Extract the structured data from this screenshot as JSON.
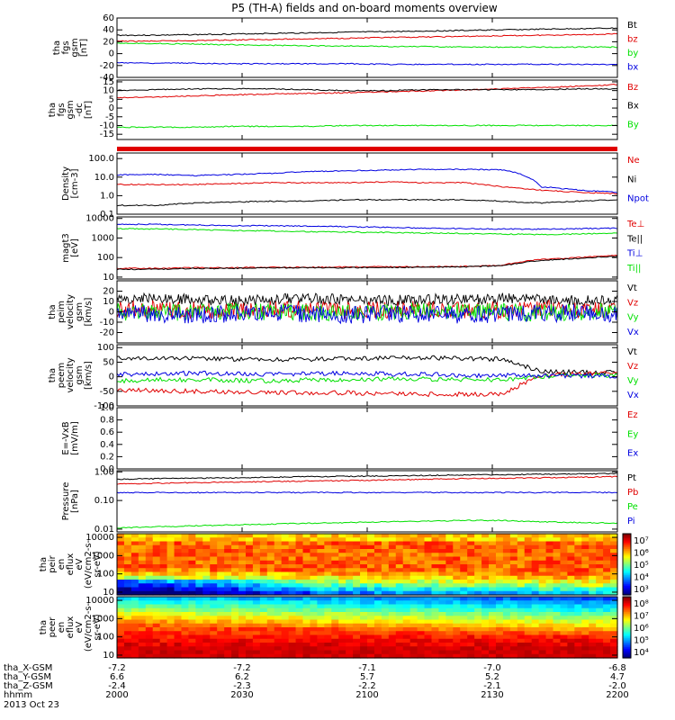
{
  "title": "P5 (TH-A) fields and on-board moments overview",
  "colors": {
    "black": "#000000",
    "red": "#e00000",
    "green": "#00e000",
    "blue": "#0000e0"
  },
  "chart_data": [
    {
      "type": "line",
      "ylabel": [
        "tha",
        "fgs",
        "gsm",
        "[nT]"
      ],
      "ylim": [
        -40,
        60
      ],
      "ticks": [
        "60",
        "40",
        "20",
        "0",
        "-20",
        "-40"
      ],
      "series": [
        {
          "name": "Bt",
          "color": "black",
          "values": [
            31,
            31,
            32,
            33,
            34,
            35,
            36,
            37,
            38,
            39,
            40,
            41,
            42,
            43
          ]
        },
        {
          "name": "bz",
          "color": "red",
          "values": [
            21,
            21,
            22,
            23,
            24,
            25,
            26,
            27,
            28,
            29,
            30,
            31,
            32,
            33
          ]
        },
        {
          "name": "by",
          "color": "green",
          "values": [
            18,
            17,
            16,
            15,
            14,
            13,
            13,
            12,
            12,
            11,
            11,
            11,
            11,
            11
          ]
        },
        {
          "name": "bx",
          "color": "blue",
          "values": [
            -15,
            -16,
            -16,
            -17,
            -17,
            -17,
            -17,
            -18,
            -18,
            -18,
            -18,
            -18,
            -18,
            -18
          ]
        }
      ]
    },
    {
      "type": "line",
      "ylabel": [
        "tha",
        "fgs",
        "gsm",
        "-dc",
        "[nT]"
      ],
      "ylim": [
        -18,
        16
      ],
      "ticks": [
        "15",
        "10",
        "5",
        "0",
        "-5",
        "-10",
        "-15"
      ],
      "series": [
        {
          "name": "Bz",
          "color": "red",
          "values": [
            6,
            6.3,
            7,
            7.5,
            8,
            8.4,
            8.8,
            9.3,
            9.8,
            10.3,
            11,
            11.8,
            12.5,
            13.5
          ]
        },
        {
          "name": "Bx",
          "color": "black",
          "values": [
            10,
            10.5,
            11,
            11,
            11,
            10.5,
            10,
            10,
            10.5,
            10.5,
            10.5,
            10.5,
            11,
            11
          ]
        },
        {
          "name": "By",
          "color": "green",
          "values": [
            -11,
            -11,
            -11,
            -10.5,
            -10.5,
            -10.5,
            -10,
            -10,
            -10,
            -10,
            -10,
            -10,
            -10,
            -10
          ]
        }
      ]
    },
    {
      "type": "line",
      "ylabel": [
        "Density",
        "[cm-3]"
      ],
      "scale": "log",
      "ylim": [
        0.1,
        200
      ],
      "ticks": [
        "100.0",
        "10.0",
        "1.0",
        "0.1"
      ],
      "series": [
        {
          "name": "Ne",
          "color": "red",
          "values": [
            4,
            4,
            4,
            4.5,
            5,
            5,
            5,
            5.5,
            5,
            5,
            3,
            2,
            1.5,
            1.3
          ]
        },
        {
          "name": "Ni",
          "color": "black",
          "values": [
            0.3,
            0.3,
            0.4,
            0.45,
            0.5,
            0.5,
            0.6,
            0.6,
            0.6,
            0.6,
            0.5,
            0.4,
            0.5,
            0.6
          ]
        },
        {
          "name": "Npot",
          "color": "blue",
          "values": [
            13,
            14,
            12,
            14,
            16,
            20,
            22,
            24,
            26,
            26,
            25,
            3,
            2,
            1.5
          ]
        }
      ]
    },
    {
      "type": "line",
      "ylabel": [
        "magt3",
        "[eV]"
      ],
      "scale": "log",
      "ylim": [
        8,
        12000
      ],
      "ticks": [
        "10000",
        "1000",
        "100",
        "10"
      ],
      "series": [
        {
          "name": "Te⊥",
          "color": "red",
          "values": [
            28,
            28,
            30,
            30,
            32,
            32,
            33,
            34,
            34,
            35,
            40,
            80,
            100,
            130
          ]
        },
        {
          "name": "Te||",
          "color": "black",
          "values": [
            25,
            25,
            28,
            28,
            30,
            30,
            30,
            31,
            32,
            33,
            38,
            70,
            90,
            120
          ]
        },
        {
          "name": "Ti⊥",
          "color": "blue",
          "values": [
            5000,
            5000,
            4600,
            4300,
            4200,
            4000,
            3800,
            3500,
            3200,
            3000,
            2900,
            2800,
            3000,
            3200
          ]
        },
        {
          "name": "Ti||",
          "color": "green",
          "values": [
            3000,
            2900,
            2700,
            2400,
            2300,
            2100,
            2000,
            1900,
            1800,
            1700,
            1600,
            1500,
            1600,
            1800
          ]
        }
      ]
    },
    {
      "type": "line",
      "ylabel": [
        "tha",
        "peim",
        "velocity",
        "gsm",
        "[km/s]"
      ],
      "ylim": [
        -30,
        30
      ],
      "ticks": [
        "20",
        "10",
        "0",
        "-10",
        "-20"
      ],
      "series": [
        {
          "name": "Vt",
          "color": "black",
          "values": [
            12,
            13,
            12,
            11,
            12,
            13,
            12,
            11,
            12,
            12,
            13,
            12,
            11,
            12
          ]
        },
        {
          "name": "Vz",
          "color": "red",
          "values": [
            2,
            3,
            2,
            1,
            3,
            2,
            1,
            2,
            2,
            1,
            2,
            3,
            2,
            2
          ]
        },
        {
          "name": "Vy",
          "color": "green",
          "values": [
            0,
            -1,
            0,
            1,
            0,
            -1,
            0,
            0,
            1,
            0,
            0,
            -1,
            0,
            0
          ]
        },
        {
          "name": "Vx",
          "color": "blue",
          "values": [
            -2,
            -2,
            -3,
            -2,
            -1,
            -2,
            -3,
            -2,
            -2,
            -3,
            -2,
            -2,
            -1,
            -2
          ]
        }
      ]
    },
    {
      "type": "line",
      "ylabel": [
        "tha",
        "peem",
        "velocity",
        "gsm",
        "[km/s]"
      ],
      "ylim": [
        -100,
        110
      ],
      "ticks": [
        "100",
        "50",
        "0",
        "-50",
        "-100"
      ],
      "series": [
        {
          "name": "Vt",
          "color": "black",
          "values": [
            65,
            65,
            62,
            60,
            58,
            60,
            62,
            64,
            65,
            63,
            60,
            20,
            15,
            15
          ]
        },
        {
          "name": "Vz",
          "color": "red",
          "values": [
            -45,
            -48,
            -50,
            -52,
            -55,
            -55,
            -55,
            -58,
            -60,
            -60,
            -58,
            5,
            10,
            15
          ]
        },
        {
          "name": "Vy",
          "color": "green",
          "values": [
            -15,
            -10,
            -10,
            -12,
            -15,
            -10,
            -10,
            -8,
            -8,
            -10,
            -10,
            0,
            5,
            5
          ]
        },
        {
          "name": "Vx",
          "color": "blue",
          "values": [
            8,
            10,
            12,
            10,
            8,
            10,
            12,
            10,
            8,
            5,
            5,
            5,
            3,
            3
          ]
        }
      ]
    },
    {
      "type": "line",
      "ylabel": [
        "E=-VxB",
        "[mV/m]"
      ],
      "ylim": [
        0,
        1
      ],
      "ticks": [
        "1.0",
        "0.8",
        "0.6",
        "0.4",
        "0.2",
        "0.0"
      ],
      "series": [
        {
          "name": "Ez",
          "color": "red",
          "values": []
        },
        {
          "name": "Ey",
          "color": "green",
          "values": []
        },
        {
          "name": "Ex",
          "color": "blue",
          "values": []
        }
      ]
    },
    {
      "type": "line",
      "ylabel": [
        "Pressure",
        "[nPa]"
      ],
      "scale": "log",
      "ylim": [
        0.008,
        1.1
      ],
      "ticks": [
        "1.00",
        "0.10",
        "0.01"
      ],
      "series": [
        {
          "name": "Pt",
          "color": "black",
          "values": [
            0.55,
            0.58,
            0.6,
            0.62,
            0.65,
            0.68,
            0.7,
            0.72,
            0.75,
            0.78,
            0.8,
            0.82,
            0.85,
            0.88
          ]
        },
        {
          "name": "Pb",
          "color": "red",
          "values": [
            0.38,
            0.4,
            0.42,
            0.44,
            0.46,
            0.48,
            0.5,
            0.52,
            0.55,
            0.58,
            0.6,
            0.62,
            0.65,
            0.68
          ]
        },
        {
          "name": "Pe",
          "color": "green",
          "values": [
            0.011,
            0.012,
            0.013,
            0.014,
            0.015,
            0.016,
            0.017,
            0.018,
            0.019,
            0.02,
            0.02,
            0.018,
            0.017,
            0.016
          ]
        },
        {
          "name": "Pi",
          "color": "blue",
          "values": [
            0.19,
            0.19,
            0.19,
            0.19,
            0.19,
            0.19,
            0.19,
            0.19,
            0.19,
            0.19,
            0.19,
            0.19,
            0.19,
            0.19
          ]
        }
      ]
    },
    {
      "type": "heatmap",
      "ylabel": [
        "tha",
        "peir",
        "en",
        "eflux",
        "eV",
        "(eV/cm2-s-",
        "sr-eV)"
      ],
      "ticks": [
        "10000",
        "1000",
        "100",
        "10"
      ],
      "colorbar": {
        "min_exp": 3,
        "max_exp": 7,
        "labels": [
          "10⁷",
          "10⁶",
          "10⁵",
          "10⁴",
          "10³"
        ]
      }
    },
    {
      "type": "heatmap",
      "ylabel": [
        "tha",
        "peer",
        "en",
        "eflux",
        "eV",
        "(eV/cm2-s-",
        "sr-eV)"
      ],
      "ticks": [
        "10000",
        "1000",
        "100",
        "10"
      ],
      "colorbar": {
        "min_exp": 4,
        "max_exp": 8,
        "labels": [
          "10⁸",
          "10⁷",
          "10⁶",
          "10⁵",
          "10⁴"
        ]
      }
    }
  ],
  "xaxis": {
    "row_labels": [
      "tha_X-GSM",
      "tha_Y-GSM",
      "tha_Z-GSM",
      "hhmm",
      "2013 Oct 23"
    ],
    "columns": [
      {
        "x": "-7.2",
        "y": "6.6",
        "z": "-2.4",
        "t": "2000"
      },
      {
        "x": "-7.2",
        "y": "6.2",
        "z": "-2.3",
        "t": "2030"
      },
      {
        "x": "-7.1",
        "y": "5.7",
        "z": "-2.2",
        "t": "2100"
      },
      {
        "x": "-7.0",
        "y": "5.2",
        "z": "-2.1",
        "t": "2130"
      },
      {
        "x": "-6.8",
        "y": "4.7",
        "z": "-2.0",
        "t": "2200"
      }
    ]
  }
}
